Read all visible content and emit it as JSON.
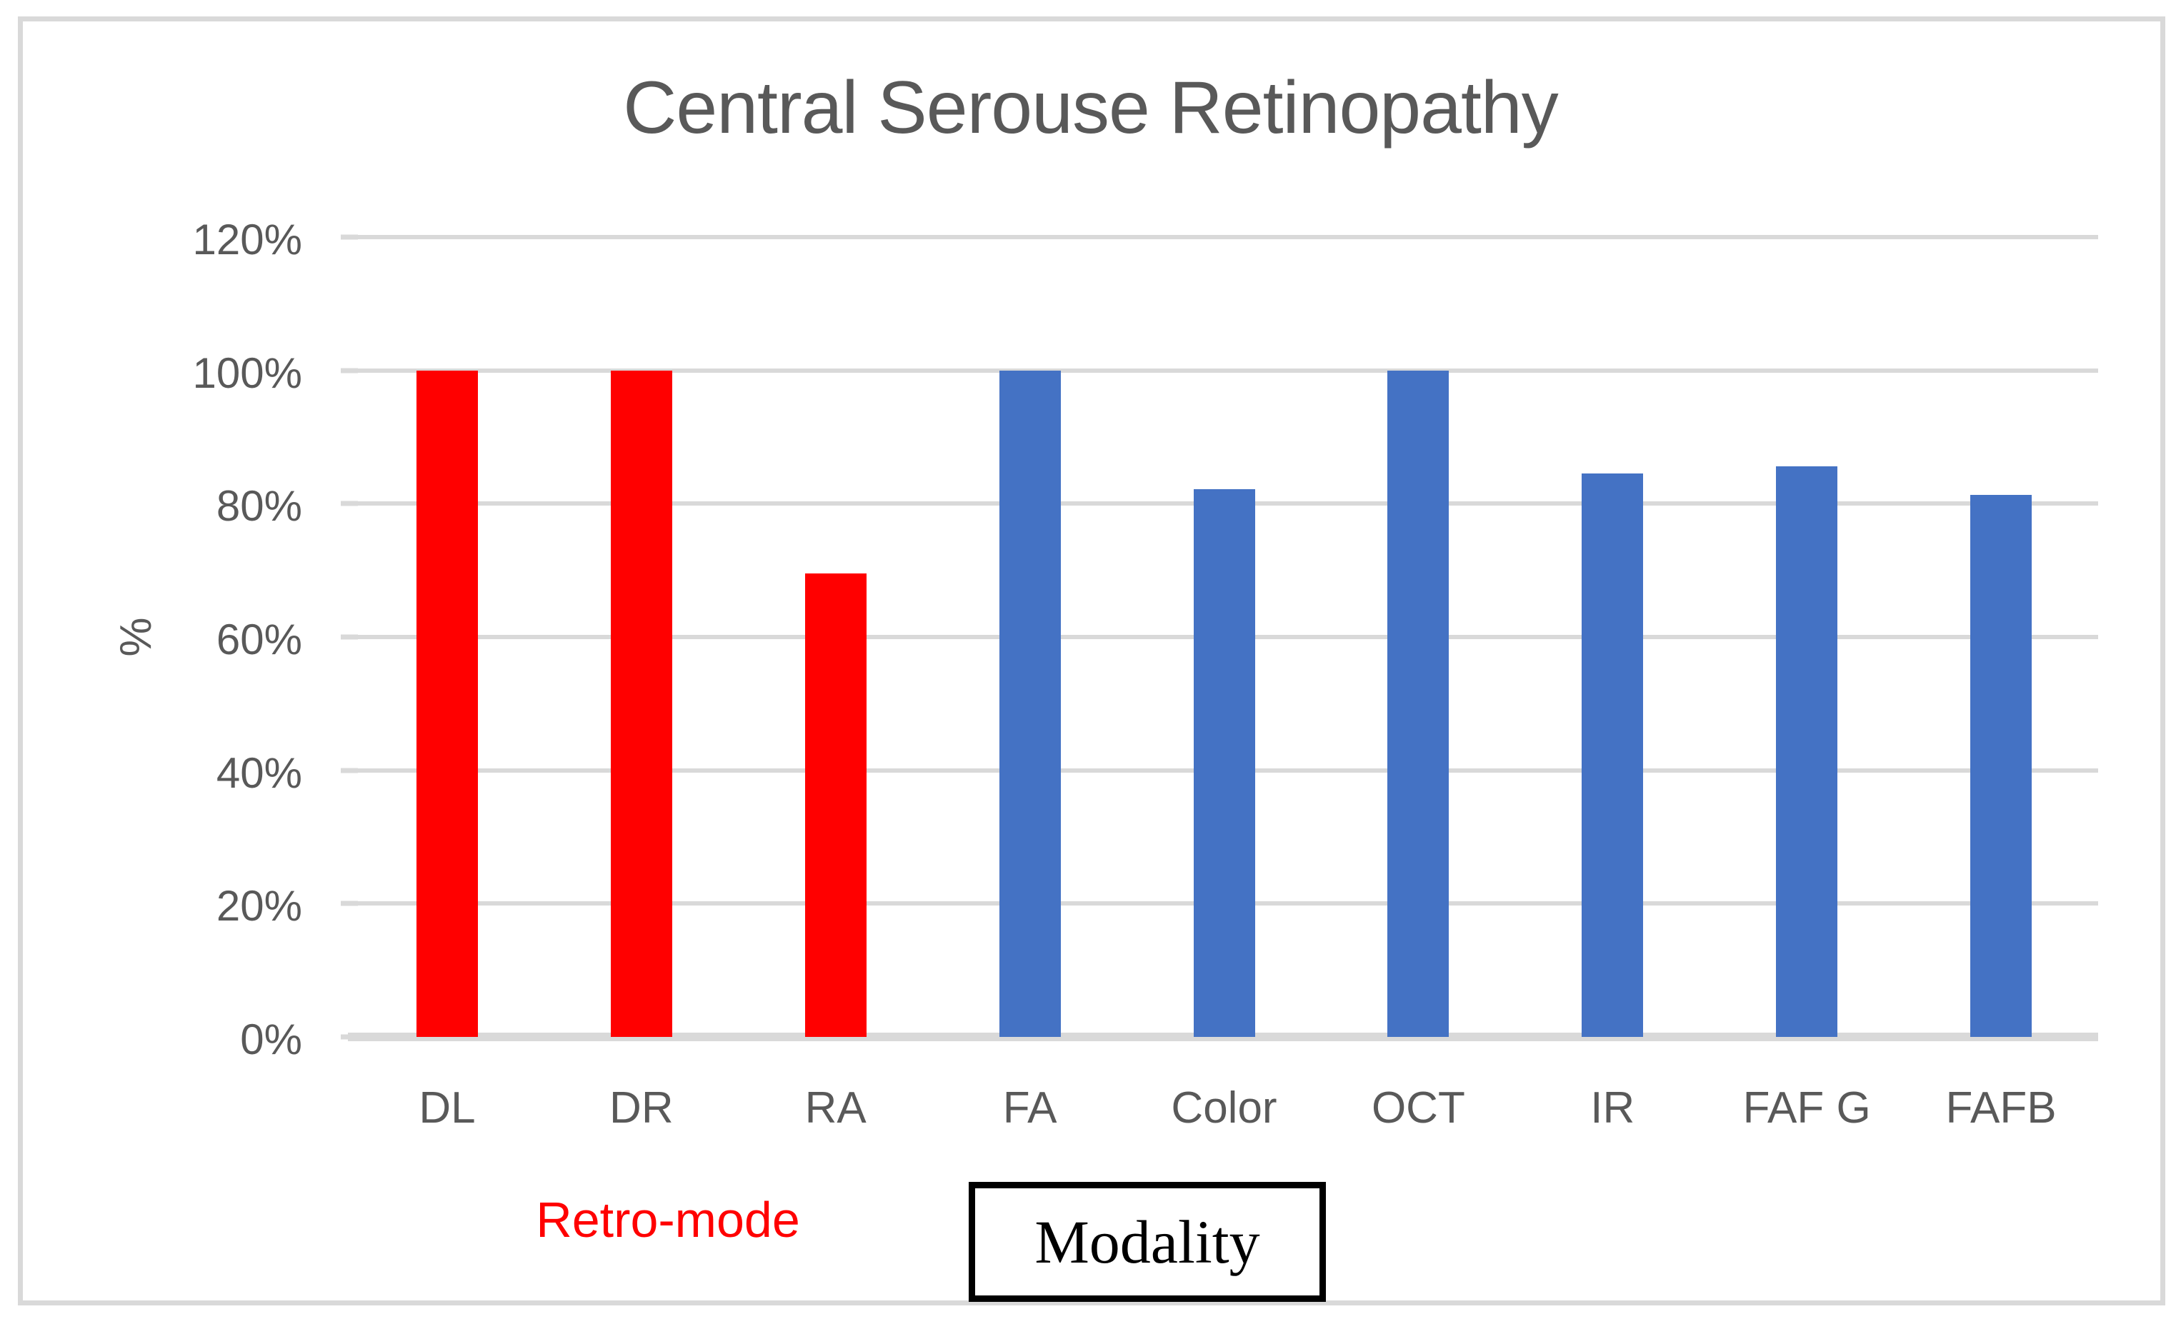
{
  "chart_data": {
    "type": "bar",
    "title": "Central Serouse Retinopathy",
    "ylabel": "%",
    "xlabel": "",
    "categories": [
      "DL",
      "DR",
      "RA",
      "FA",
      "Color",
      "OCT",
      "IR",
      "FAF G",
      "FAFB"
    ],
    "values": [
      100,
      100,
      69.5,
      100,
      82.2,
      100,
      84.5,
      85.6,
      81.3
    ],
    "bar_colors": [
      "#ff0000",
      "#ff0000",
      "#ff0000",
      "#4472c4",
      "#4472c4",
      "#4472c4",
      "#4472c4",
      "#4472c4",
      "#4472c4"
    ],
    "ylim": [
      0,
      120
    ],
    "ytick_values": [
      0,
      20,
      40,
      60,
      80,
      100,
      120
    ],
    "yticks": [
      "0%",
      "20%",
      "40%",
      "60%",
      "80%",
      "100%",
      "120%"
    ],
    "grid": true,
    "legend_position": "below-plot",
    "groups": [
      {
        "label": "Retro-mode",
        "color": "#ff0000",
        "categories": [
          "DL",
          "DR",
          "RA"
        ]
      },
      {
        "label": "Modality",
        "color": "#4472c4",
        "categories": [
          "FA",
          "Color",
          "OCT",
          "IR",
          "FAF G",
          "FAFB"
        ]
      }
    ],
    "annotations": [
      {
        "text": "Retro-mode",
        "color": "#ff0000",
        "style": "plain-red-text"
      },
      {
        "text": "Modality",
        "color": "#000000",
        "style": "black-outlined-box"
      }
    ]
  },
  "colors": {
    "red_bar": "#ff0000",
    "blue_bar": "#4472c4",
    "grid": "#d9d9d9",
    "frame": "#d9d9d9",
    "text": "#595959"
  }
}
